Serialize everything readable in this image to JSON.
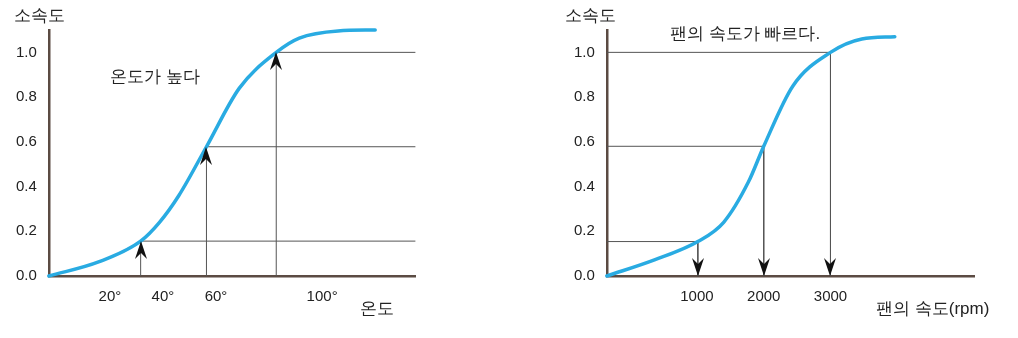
{
  "chart_data": [
    {
      "type": "line",
      "ylabel": "소속도",
      "xlabel": "온도",
      "annotations": [
        "온도가 높다"
      ],
      "xlim": [
        -3,
        135
      ],
      "ylim": [
        0,
        1.1
      ],
      "xticks": [
        {
          "value": 20,
          "label": "20°"
        },
        {
          "value": 40,
          "label": "40°"
        },
        {
          "value": 60,
          "label": "60°"
        },
        {
          "value": 100,
          "label": "100°"
        }
      ],
      "yticks": [
        {
          "value": 0,
          "label": "0.0"
        },
        {
          "value": 0.2,
          "label": "0.2"
        },
        {
          "value": 0.4,
          "label": "0.4"
        },
        {
          "value": 0.6,
          "label": "0.6"
        },
        {
          "value": 0.8,
          "label": "0.8"
        },
        {
          "value": 1,
          "label": "1.0"
        }
      ],
      "series": [
        {
          "color": "#29abe2",
          "x": [
            -3,
            16,
            31.6,
            38.7,
            46,
            56.4,
            68.8,
            82.7,
            91.4,
            106,
            120
          ],
          "values": [
            0,
            0.064,
            0.156,
            0.24,
            0.36,
            0.578,
            0.84,
            1.0,
            1.064,
            1.096,
            1.1
          ]
        },
        {
          "color": "#555555",
          "x": [
            31.6,
            135
          ],
          "values": [
            0.156,
            0.156
          ]
        },
        {
          "color": "#555555",
          "x": [
            56.4,
            135
          ],
          "values": [
            0.578,
            0.578
          ]
        },
        {
          "color": "#555555",
          "x": [
            82.7,
            135
          ],
          "values": [
            1.0,
            1.0
          ]
        },
        {
          "color": "#555555",
          "x": [
            31.6,
            31.6
          ],
          "values": [
            0,
            0.156
          ]
        },
        {
          "color": "#555555",
          "x": [
            56.4,
            56.4
          ],
          "values": [
            0,
            0.578
          ]
        },
        {
          "color": "#555555",
          "x": [
            82.7,
            82.7
          ],
          "values": [
            0,
            1.0
          ]
        }
      ]
    },
    {
      "type": "line",
      "ylabel": "소속도",
      "xlabel": "팬의 속도(rpm)",
      "annotations": [
        "팬의 속도가 빠르다."
      ],
      "xlim": [
        -350,
        5150
      ],
      "ylim": [
        0,
        1.1
      ],
      "xticks": [
        1000,
        2000,
        3000
      ],
      "yticks": [
        {
          "value": 0,
          "label": "0.0"
        },
        {
          "value": 0.2,
          "label": "0.2"
        },
        {
          "value": 0.4,
          "label": "0.4"
        },
        {
          "value": 0.6,
          "label": "0.6"
        },
        {
          "value": 0.8,
          "label": "0.8"
        },
        {
          "value": 1,
          "label": "1.0"
        }
      ],
      "series": [
        {
          "color": "#29abe2",
          "x": [
            -350,
            363,
            1013,
            1400,
            1770,
            2000,
            2437,
            3000,
            3470,
            3963
          ],
          "values": [
            0,
            0.072,
            0.154,
            0.24,
            0.42,
            0.58,
            0.85,
            1.0,
            1.06,
            1.07
          ]
        },
        {
          "color": "#555555",
          "x": [
            -350,
            1013
          ],
          "values": [
            0.154,
            0.154
          ]
        },
        {
          "color": "#555555",
          "x": [
            -350,
            2000
          ],
          "values": [
            0.58,
            0.58
          ]
        },
        {
          "color": "#555555",
          "x": [
            -350,
            3000
          ],
          "values": [
            1.0,
            1.0
          ]
        },
        {
          "color": "#555555",
          "x": [
            1013,
            1013
          ],
          "values": [
            0.154,
            0
          ]
        },
        {
          "color": "#555555",
          "x": [
            2000,
            2000
          ],
          "values": [
            0.58,
            0
          ]
        },
        {
          "color": "#555555",
          "x": [
            3000,
            3000
          ],
          "values": [
            1.0,
            0
          ]
        }
      ]
    }
  ]
}
